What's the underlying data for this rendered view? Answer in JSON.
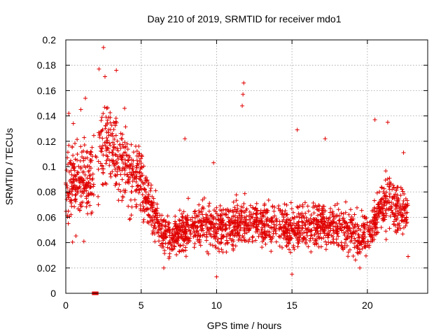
{
  "chart_data": {
    "type": "scatter",
    "title": "Day 210 of 2019, SRMTID for receiver mdo1",
    "xlabel": "GPS time / hours",
    "ylabel": "SRMTID / TECUs",
    "xlim": [
      0,
      24
    ],
    "ylim": [
      0,
      0.2
    ],
    "xticks": [
      0,
      5,
      10,
      15,
      20
    ],
    "yticks": [
      0,
      0.02,
      0.04,
      0.06,
      0.08,
      0.1,
      0.12,
      0.14,
      0.16,
      0.18,
      0.2
    ],
    "xtick_labels": [
      "0",
      "5",
      "10",
      "15",
      "20"
    ],
    "ytick_labels": [
      "0",
      "0.02",
      "0.04",
      "0.06",
      "0.08",
      "0.1",
      "0.12",
      "0.14",
      "0.16",
      "0.18",
      "0.2"
    ],
    "grid": true,
    "marker": "+",
    "color": "#e00000",
    "zero_markers": [
      {
        "x": 1.85,
        "y": 0
      },
      {
        "x": 2.05,
        "y": 0
      }
    ],
    "envelope": [
      {
        "x": 0.0,
        "y_mean": 0.088,
        "y_spread": 0.03
      },
      {
        "x": 0.5,
        "y_mean": 0.085,
        "y_spread": 0.03
      },
      {
        "x": 1.0,
        "y_mean": 0.09,
        "y_spread": 0.028
      },
      {
        "x": 1.5,
        "y_mean": 0.085,
        "y_spread": 0.028
      },
      {
        "x": 2.0,
        "y_mean": 0.095,
        "y_spread": 0.03
      },
      {
        "x": 2.5,
        "y_mean": 0.115,
        "y_spread": 0.03
      },
      {
        "x": 3.0,
        "y_mean": 0.115,
        "y_spread": 0.028
      },
      {
        "x": 3.5,
        "y_mean": 0.105,
        "y_spread": 0.028
      },
      {
        "x": 4.0,
        "y_mean": 0.1,
        "y_spread": 0.025
      },
      {
        "x": 4.5,
        "y_mean": 0.09,
        "y_spread": 0.025
      },
      {
        "x": 5.0,
        "y_mean": 0.09,
        "y_spread": 0.022
      },
      {
        "x": 5.5,
        "y_mean": 0.075,
        "y_spread": 0.018
      },
      {
        "x": 6.0,
        "y_mean": 0.06,
        "y_spread": 0.016
      },
      {
        "x": 6.5,
        "y_mean": 0.045,
        "y_spread": 0.014
      },
      {
        "x": 7.0,
        "y_mean": 0.045,
        "y_spread": 0.014
      },
      {
        "x": 8.0,
        "y_mean": 0.05,
        "y_spread": 0.015
      },
      {
        "x": 9.0,
        "y_mean": 0.052,
        "y_spread": 0.015
      },
      {
        "x": 10.0,
        "y_mean": 0.05,
        "y_spread": 0.015
      },
      {
        "x": 11.0,
        "y_mean": 0.052,
        "y_spread": 0.015
      },
      {
        "x": 12.0,
        "y_mean": 0.058,
        "y_spread": 0.016
      },
      {
        "x": 13.0,
        "y_mean": 0.055,
        "y_spread": 0.015
      },
      {
        "x": 14.0,
        "y_mean": 0.055,
        "y_spread": 0.015
      },
      {
        "x": 15.0,
        "y_mean": 0.05,
        "y_spread": 0.016
      },
      {
        "x": 16.0,
        "y_mean": 0.052,
        "y_spread": 0.015
      },
      {
        "x": 17.0,
        "y_mean": 0.055,
        "y_spread": 0.015
      },
      {
        "x": 18.0,
        "y_mean": 0.052,
        "y_spread": 0.015
      },
      {
        "x": 19.0,
        "y_mean": 0.048,
        "y_spread": 0.015
      },
      {
        "x": 20.0,
        "y_mean": 0.045,
        "y_spread": 0.015
      },
      {
        "x": 20.5,
        "y_mean": 0.055,
        "y_spread": 0.016
      },
      {
        "x": 21.0,
        "y_mean": 0.07,
        "y_spread": 0.018
      },
      {
        "x": 21.5,
        "y_mean": 0.075,
        "y_spread": 0.018
      },
      {
        "x": 22.0,
        "y_mean": 0.065,
        "y_spread": 0.018
      },
      {
        "x": 22.7,
        "y_mean": 0.065,
        "y_spread": 0.016
      }
    ],
    "notable_points": [
      {
        "x": 2.5,
        "y": 0.194
      },
      {
        "x": 2.2,
        "y": 0.177
      },
      {
        "x": 3.35,
        "y": 0.176
      },
      {
        "x": 2.6,
        "y": 0.171
      },
      {
        "x": 11.8,
        "y": 0.166
      },
      {
        "x": 11.75,
        "y": 0.157
      },
      {
        "x": 11.7,
        "y": 0.148
      },
      {
        "x": 1.3,
        "y": 0.154
      },
      {
        "x": 0.2,
        "y": 0.142
      },
      {
        "x": 0.5,
        "y": 0.134
      },
      {
        "x": 1.0,
        "y": 0.145
      },
      {
        "x": 3.9,
        "y": 0.146
      },
      {
        "x": 15.35,
        "y": 0.129
      },
      {
        "x": 17.2,
        "y": 0.122
      },
      {
        "x": 20.5,
        "y": 0.137
      },
      {
        "x": 21.35,
        "y": 0.135
      },
      {
        "x": 7.9,
        "y": 0.122
      },
      {
        "x": 9.8,
        "y": 0.103
      },
      {
        "x": 22.4,
        "y": 0.111
      },
      {
        "x": 22.7,
        "y": 0.029
      },
      {
        "x": 10.0,
        "y": 0.013
      },
      {
        "x": 15.0,
        "y": 0.015
      },
      {
        "x": 1.2,
        "y": 0.041
      },
      {
        "x": 6.5,
        "y": 0.02
      },
      {
        "x": 19.5,
        "y": 0.02
      }
    ],
    "random_seed": 210,
    "samples_per_half_hour": 50
  }
}
